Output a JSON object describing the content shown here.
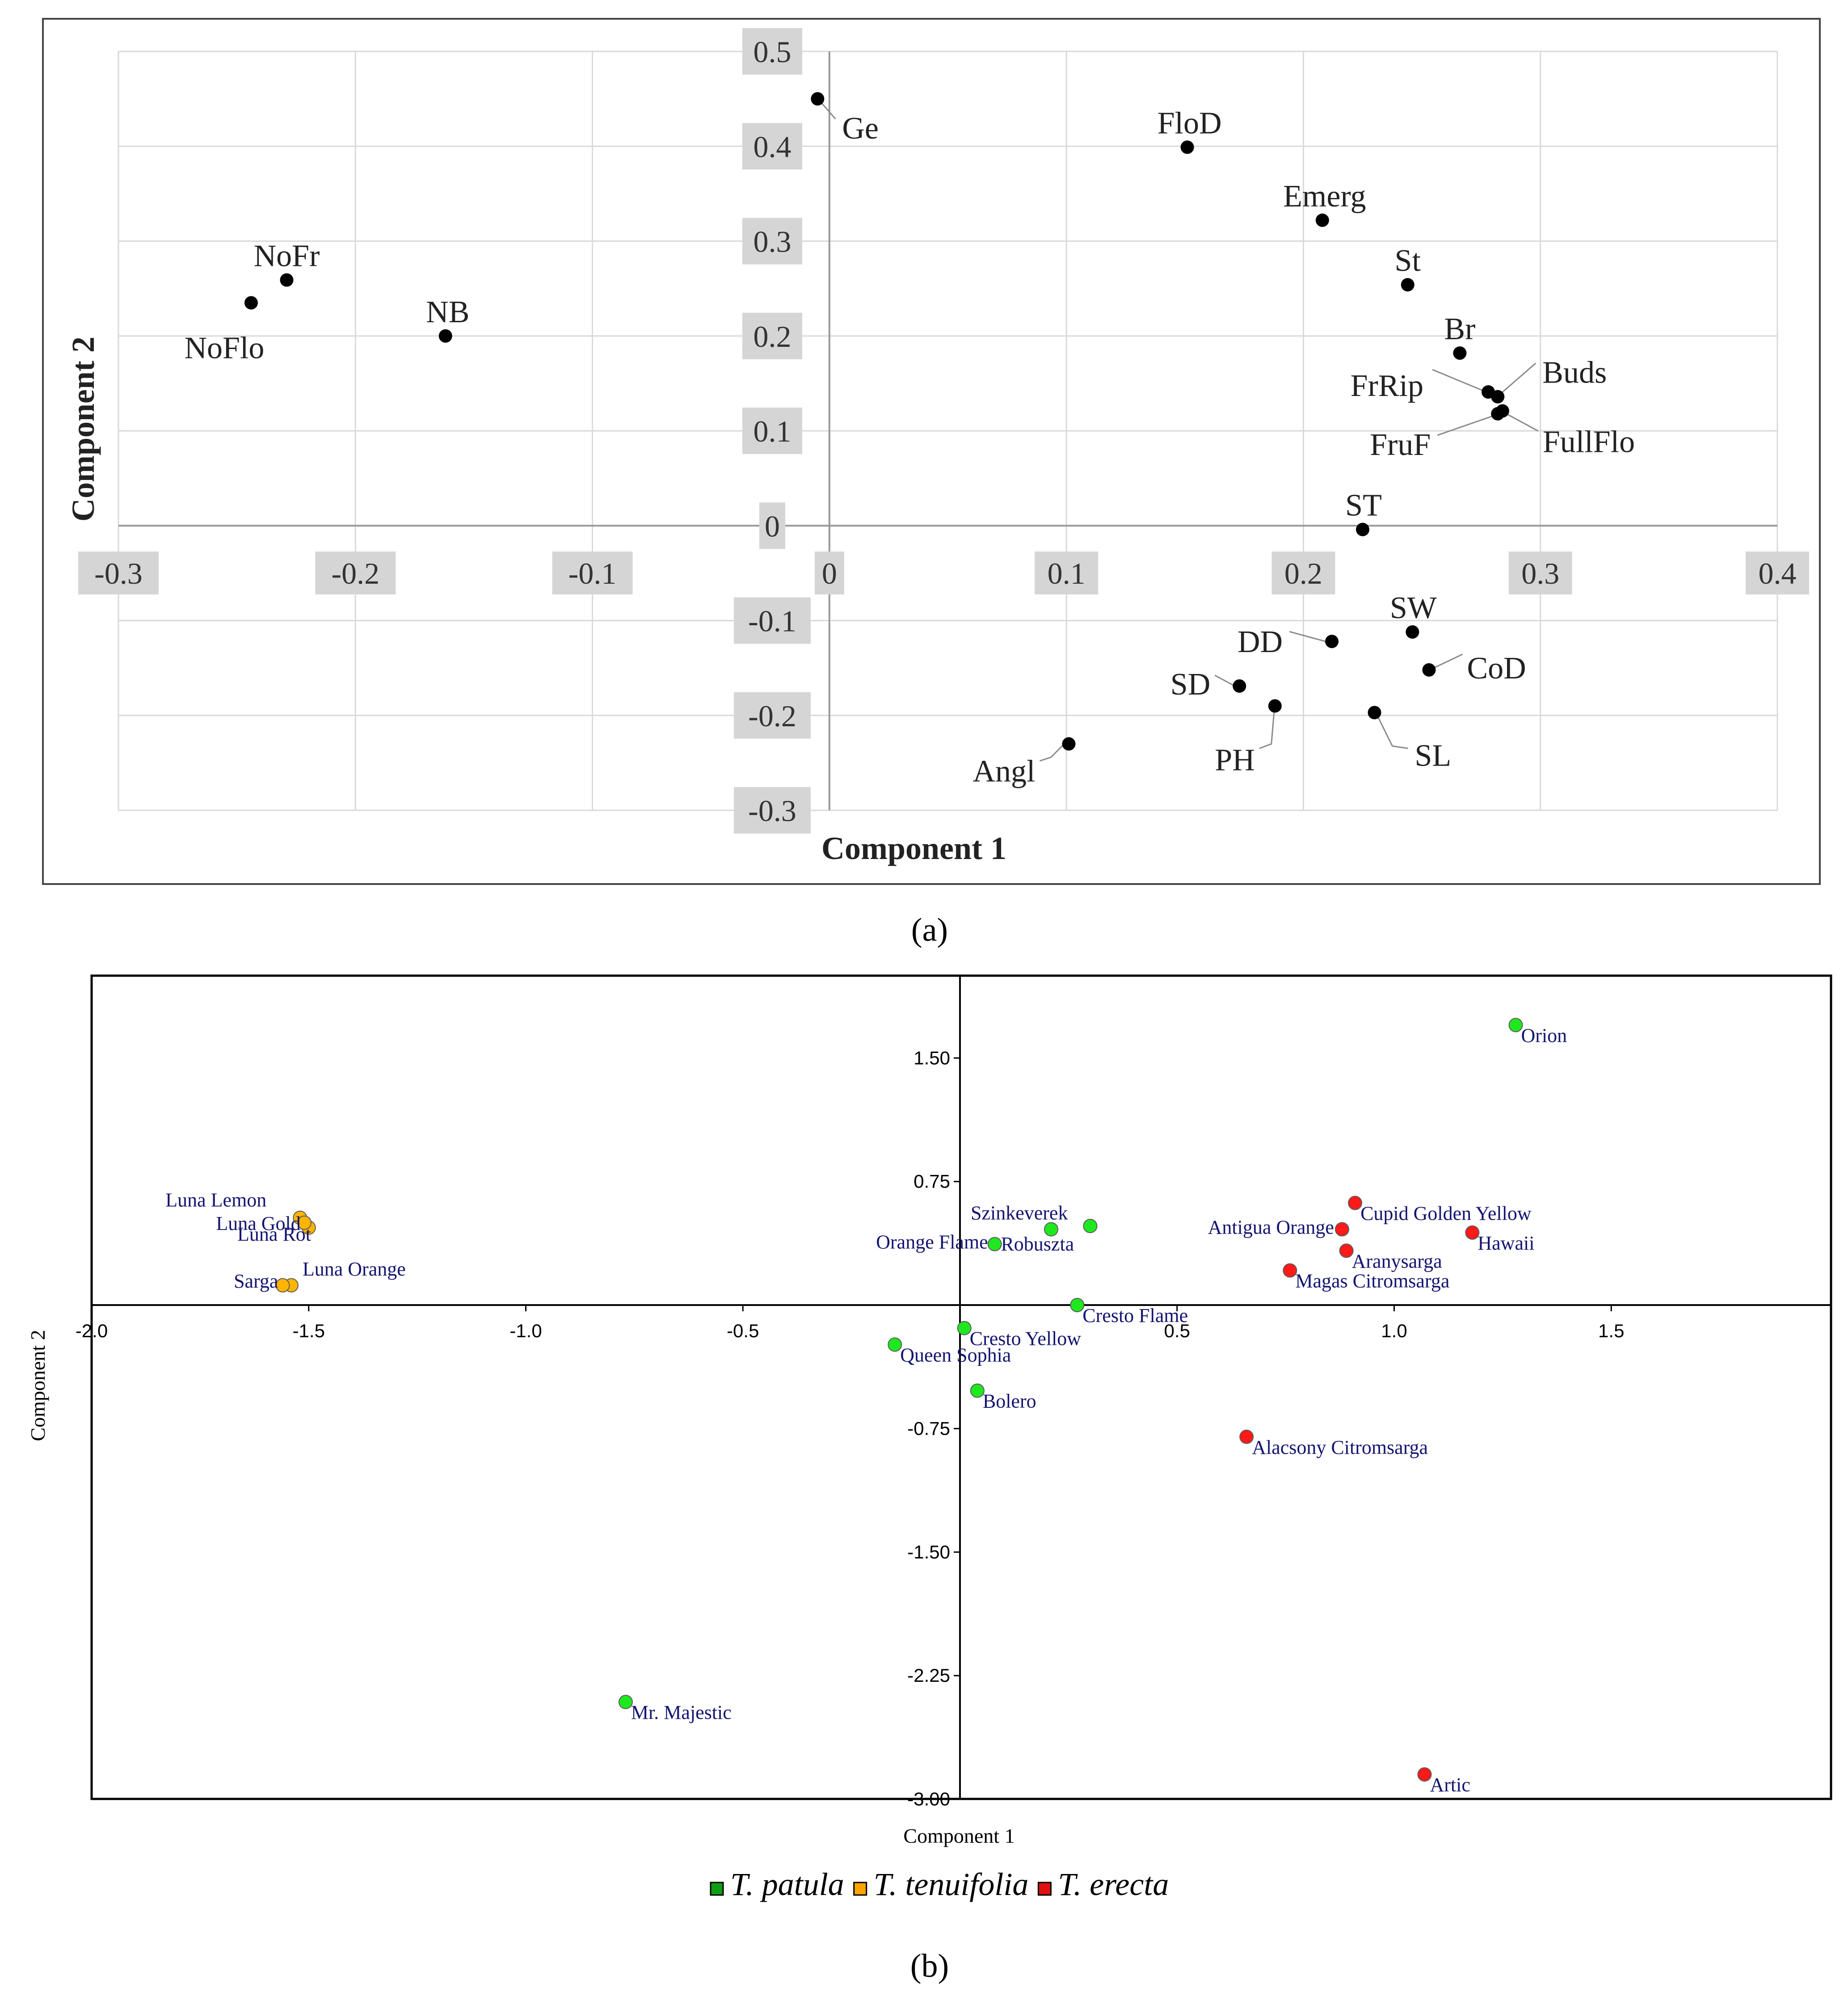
{
  "figure": {
    "panel_a_caption": "(a)",
    "panel_b_caption": "(b)"
  },
  "chart_data": [
    {
      "type": "scatter",
      "title": "",
      "xlabel": "Component 1",
      "ylabel": "Component 2",
      "xlim": [
        -0.3,
        0.4
      ],
      "ylim": [
        -0.3,
        0.5
      ],
      "grid": true,
      "x_ticks": [
        {
          "value": -0.3,
          "label": "-0.3"
        },
        {
          "value": -0.2,
          "label": "-0.2"
        },
        {
          "value": -0.1,
          "label": "-0.1"
        },
        {
          "value": 0,
          "label": "0"
        },
        {
          "value": 0.1,
          "label": "0.1"
        },
        {
          "value": 0.2,
          "label": "0.2"
        },
        {
          "value": 0.3,
          "label": "0.3"
        },
        {
          "value": 0.4,
          "label": "0.4"
        }
      ],
      "y_ticks": [
        {
          "value": 0.5,
          "label": "0.5"
        },
        {
          "value": 0.4,
          "label": "0.4"
        },
        {
          "value": 0.3,
          "label": "0.3"
        },
        {
          "value": 0.2,
          "label": "0.2"
        },
        {
          "value": 0.1,
          "label": "0.1"
        },
        {
          "value": 0,
          "label": "0"
        },
        {
          "value": -0.1,
          "label": "-0.1"
        },
        {
          "value": -0.2,
          "label": "-0.2"
        },
        {
          "value": -0.3,
          "label": "-0.3"
        }
      ],
      "points": [
        {
          "label": "Ge",
          "x": -0.005,
          "y": 0.45
        },
        {
          "label": "FloD",
          "x": 0.151,
          "y": 0.399
        },
        {
          "label": "Emerg",
          "x": 0.208,
          "y": 0.322
        },
        {
          "label": "St",
          "x": 0.244,
          "y": 0.254
        },
        {
          "label": "Br",
          "x": 0.266,
          "y": 0.182
        },
        {
          "label": "FrRip",
          "x": 0.278,
          "y": 0.141
        },
        {
          "label": "Buds",
          "x": 0.282,
          "y": 0.136
        },
        {
          "label": "FruF",
          "x": 0.282,
          "y": 0.118
        },
        {
          "label": "FullFlo",
          "x": 0.284,
          "y": 0.121
        },
        {
          "label": "NoFr",
          "x": -0.229,
          "y": 0.259
        },
        {
          "label": "NoFlo",
          "x": -0.244,
          "y": 0.235
        },
        {
          "label": "NB",
          "x": -0.162,
          "y": 0.2
        },
        {
          "label": "ST",
          "x": 0.225,
          "y": -0.004
        },
        {
          "label": "SW",
          "x": 0.246,
          "y": -0.112
        },
        {
          "label": "DD",
          "x": 0.212,
          "y": -0.122
        },
        {
          "label": "CoD",
          "x": 0.253,
          "y": -0.152
        },
        {
          "label": "SD",
          "x": 0.173,
          "y": -0.169
        },
        {
          "label": "PH",
          "x": 0.188,
          "y": -0.19
        },
        {
          "label": "SL",
          "x": 0.23,
          "y": -0.197
        },
        {
          "label": "Angl",
          "x": 0.101,
          "y": -0.23
        }
      ]
    },
    {
      "type": "scatter",
      "title": "",
      "xlabel": "Component 1",
      "ylabel": "Component 2",
      "xlim": [
        -2.0,
        2.0
      ],
      "ylim": [
        -3.0,
        2.0
      ],
      "grid": false,
      "x_ticks": [
        {
          "value": -2.0,
          "label": "-2.0"
        },
        {
          "value": -1.5,
          "label": "-1.5"
        },
        {
          "value": -1.0,
          "label": "-1.0"
        },
        {
          "value": -0.5,
          "label": "-0.5"
        },
        {
          "value": 0.5,
          "label": "0.5"
        },
        {
          "value": 1.0,
          "label": "1.0"
        },
        {
          "value": 1.5,
          "label": "1.5"
        }
      ],
      "y_ticks": [
        {
          "value": 1.5,
          "label": "1.50"
        },
        {
          "value": 0.75,
          "label": "0.75"
        },
        {
          "value": -0.75,
          "label": "-0.75"
        },
        {
          "value": -1.5,
          "label": "-1.50"
        },
        {
          "value": -2.25,
          "label": "-2.25"
        },
        {
          "value": -3.0,
          "label": "-3.00"
        }
      ],
      "series": [
        {
          "name": "T. patula",
          "color": "#1fe81f",
          "legend_color": "#0f9d15",
          "points": [
            {
              "label": "Orion",
              "x": 1.28,
              "y": 1.7
            },
            {
              "label": "Szinkeverek",
              "x": 0.21,
              "y": 0.46
            },
            {
              "label": "Robuszta",
              "x": 0.3,
              "y": 0.48
            },
            {
              "label": "Orange Flame",
              "x": 0.08,
              "y": 0.37
            },
            {
              "label": "Cresto Flame",
              "x": 0.27,
              "y": 0.0
            },
            {
              "label": "Cresto Yellow",
              "x": 0.01,
              "y": -0.14
            },
            {
              "label": "Queen Sophia",
              "x": -0.15,
              "y": -0.24
            },
            {
              "label": "Bolero",
              "x": 0.04,
              "y": -0.52
            },
            {
              "label": "Mr. Majestic",
              "x": -0.77,
              "y": -2.41
            }
          ]
        },
        {
          "name": "T. tenuifolia",
          "color": "#ffb400",
          "legend_color": "#ffa500",
          "points": [
            {
              "label": "Luna Lemon",
              "x": -1.52,
              "y": 0.53
            },
            {
              "label": "Luna Gold",
              "x": -1.5,
              "y": 0.47
            },
            {
              "label": "Luna Rot",
              "x": -1.51,
              "y": 0.5
            },
            {
              "label": "Luna Orange",
              "x": -1.54,
              "y": 0.12
            },
            {
              "label": "Sarga",
              "x": -1.56,
              "y": 0.12
            }
          ]
        },
        {
          "name": "T. erecta",
          "color": "#ff1a1a",
          "legend_color": "#e01010",
          "points": [
            {
              "label": "Cupid Golden Yellow",
              "x": 0.91,
              "y": 0.62
            },
            {
              "label": "Antigua Orange",
              "x": 0.88,
              "y": 0.46
            },
            {
              "label": "Hawaii",
              "x": 1.18,
              "y": 0.44
            },
            {
              "label": "Aranysarga",
              "x": 0.89,
              "y": 0.33
            },
            {
              "label": "Magas Citromsarga",
              "x": 0.76,
              "y": 0.21
            },
            {
              "label": "Alacsony Citromsarga",
              "x": 0.66,
              "y": -0.8
            },
            {
              "label": "Artic",
              "x": 1.07,
              "y": -2.85
            }
          ]
        }
      ]
    }
  ]
}
